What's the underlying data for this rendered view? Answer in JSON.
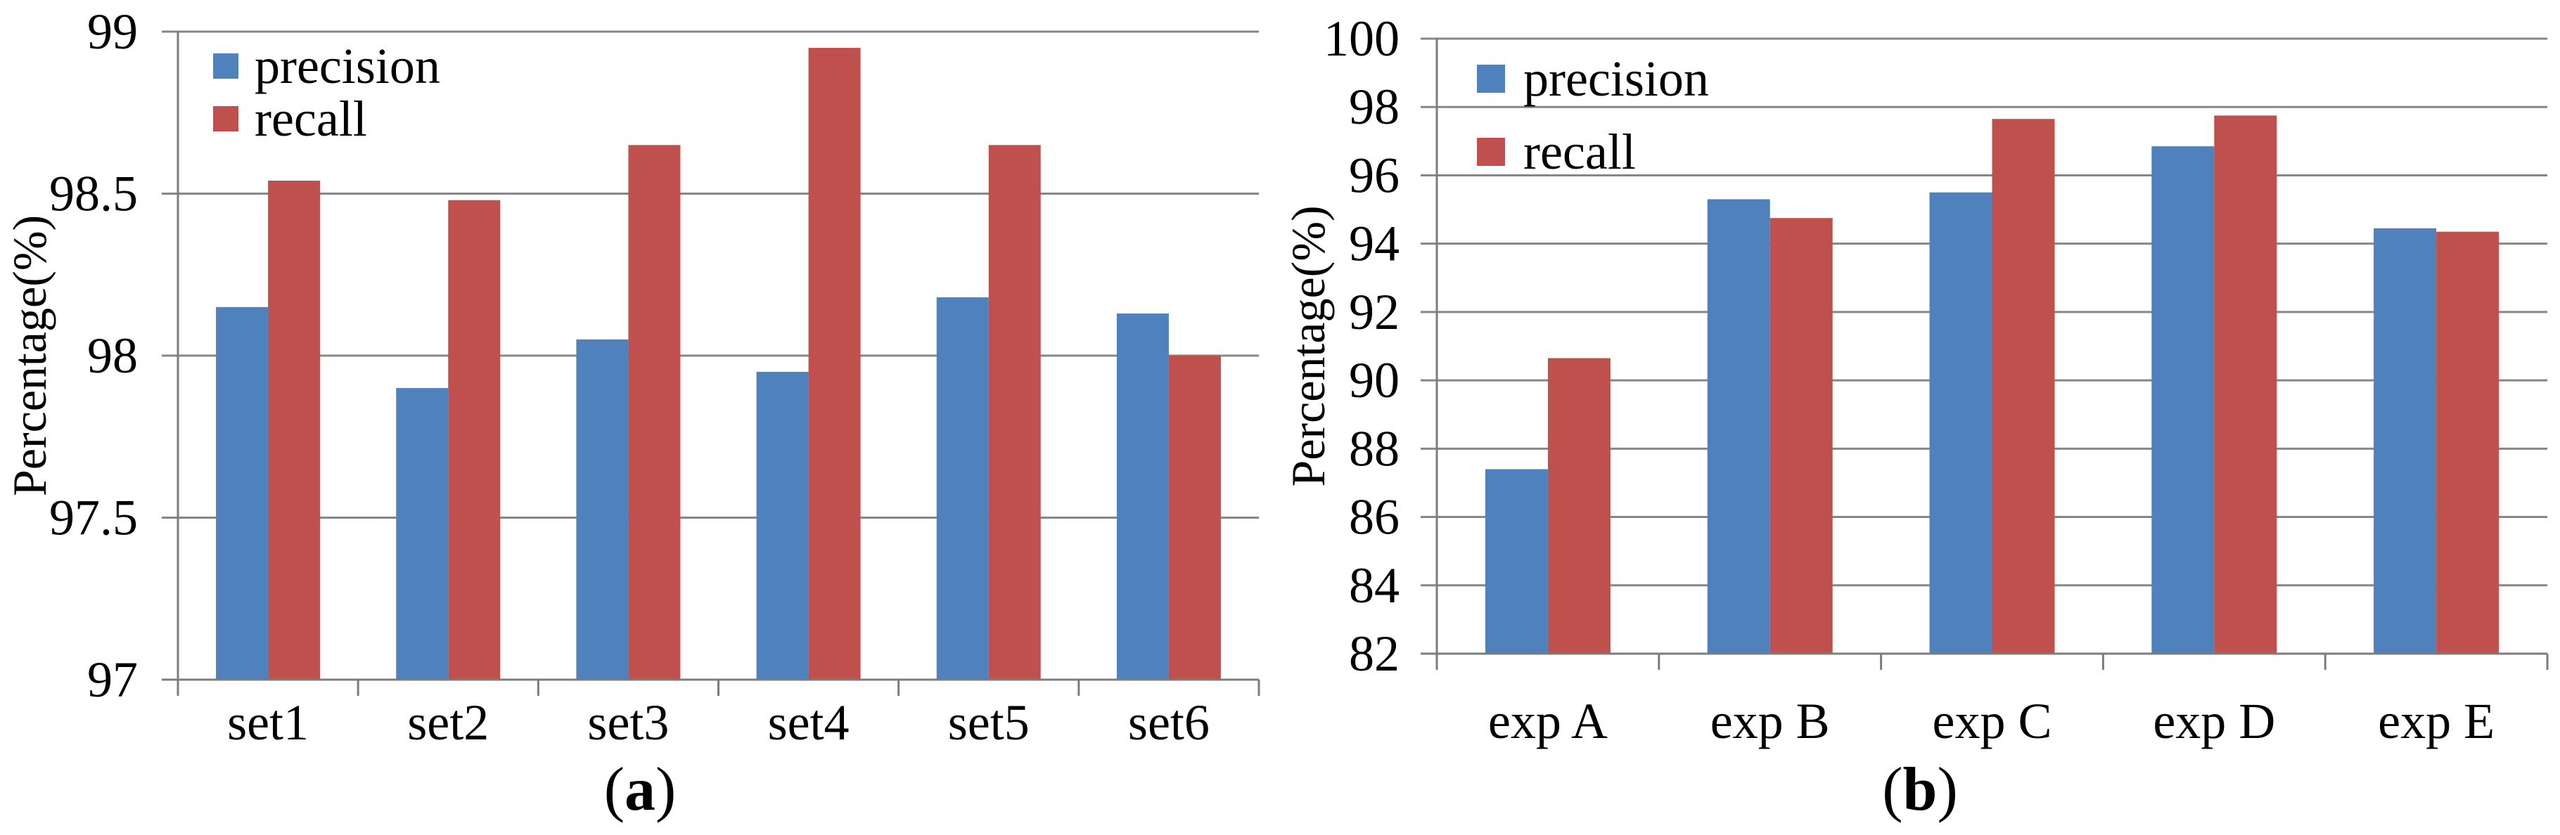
{
  "figure": {
    "background": "#ffffff",
    "grid_color": "#868686",
    "axis_color": "#7c7c7c",
    "text_color": "#000000"
  },
  "chart_data": [
    {
      "panel": "a",
      "type": "bar",
      "title": "",
      "xlabel": "",
      "ylabel": "Percentage(%)",
      "categories": [
        "set1",
        "set2",
        "set3",
        "set4",
        "set5",
        "set6"
      ],
      "series": [
        {
          "name": "precision",
          "color": "#4f81bd",
          "values": [
            98.15,
            97.9,
            98.05,
            97.95,
            98.18,
            98.13
          ]
        },
        {
          "name": "recall",
          "color": "#c0504d",
          "values": [
            98.54,
            98.48,
            98.65,
            98.95,
            98.65,
            98.0
          ]
        }
      ],
      "ylim": [
        97,
        99
      ],
      "ytick_values": [
        97,
        97.5,
        98,
        98.5,
        99
      ],
      "ytick_labels": [
        "97",
        "97.5",
        "98",
        "98.5",
        "99"
      ],
      "grid": true,
      "legend_position": "top-left",
      "legend_labels": [
        "precision",
        "recall"
      ],
      "caption": {
        "open": "(",
        "letter": "a",
        "close": ")"
      }
    },
    {
      "panel": "b",
      "type": "bar",
      "title": "",
      "xlabel": "",
      "ylabel": "Percentage(%)",
      "categories": [
        "exp A",
        "exp B",
        "exp C",
        "exp D",
        "exp E"
      ],
      "series": [
        {
          "name": "precision",
          "color": "#4f81bd",
          "values": [
            87.4,
            95.3,
            95.5,
            96.85,
            94.45
          ]
        },
        {
          "name": "recall",
          "color": "#c0504d",
          "values": [
            90.65,
            94.75,
            97.65,
            97.75,
            94.35
          ]
        }
      ],
      "ylim": [
        82,
        100
      ],
      "ytick_values": [
        82,
        84,
        86,
        88,
        90,
        92,
        94,
        96,
        98,
        100
      ],
      "ytick_labels": [
        "82",
        "84",
        "86",
        "88",
        "90",
        "92",
        "94",
        "96",
        "98",
        "100"
      ],
      "grid": true,
      "legend_position": "top-left",
      "legend_labels": [
        "precision",
        "recall"
      ],
      "caption": {
        "open": "(",
        "letter": "b",
        "close": ")"
      }
    }
  ]
}
